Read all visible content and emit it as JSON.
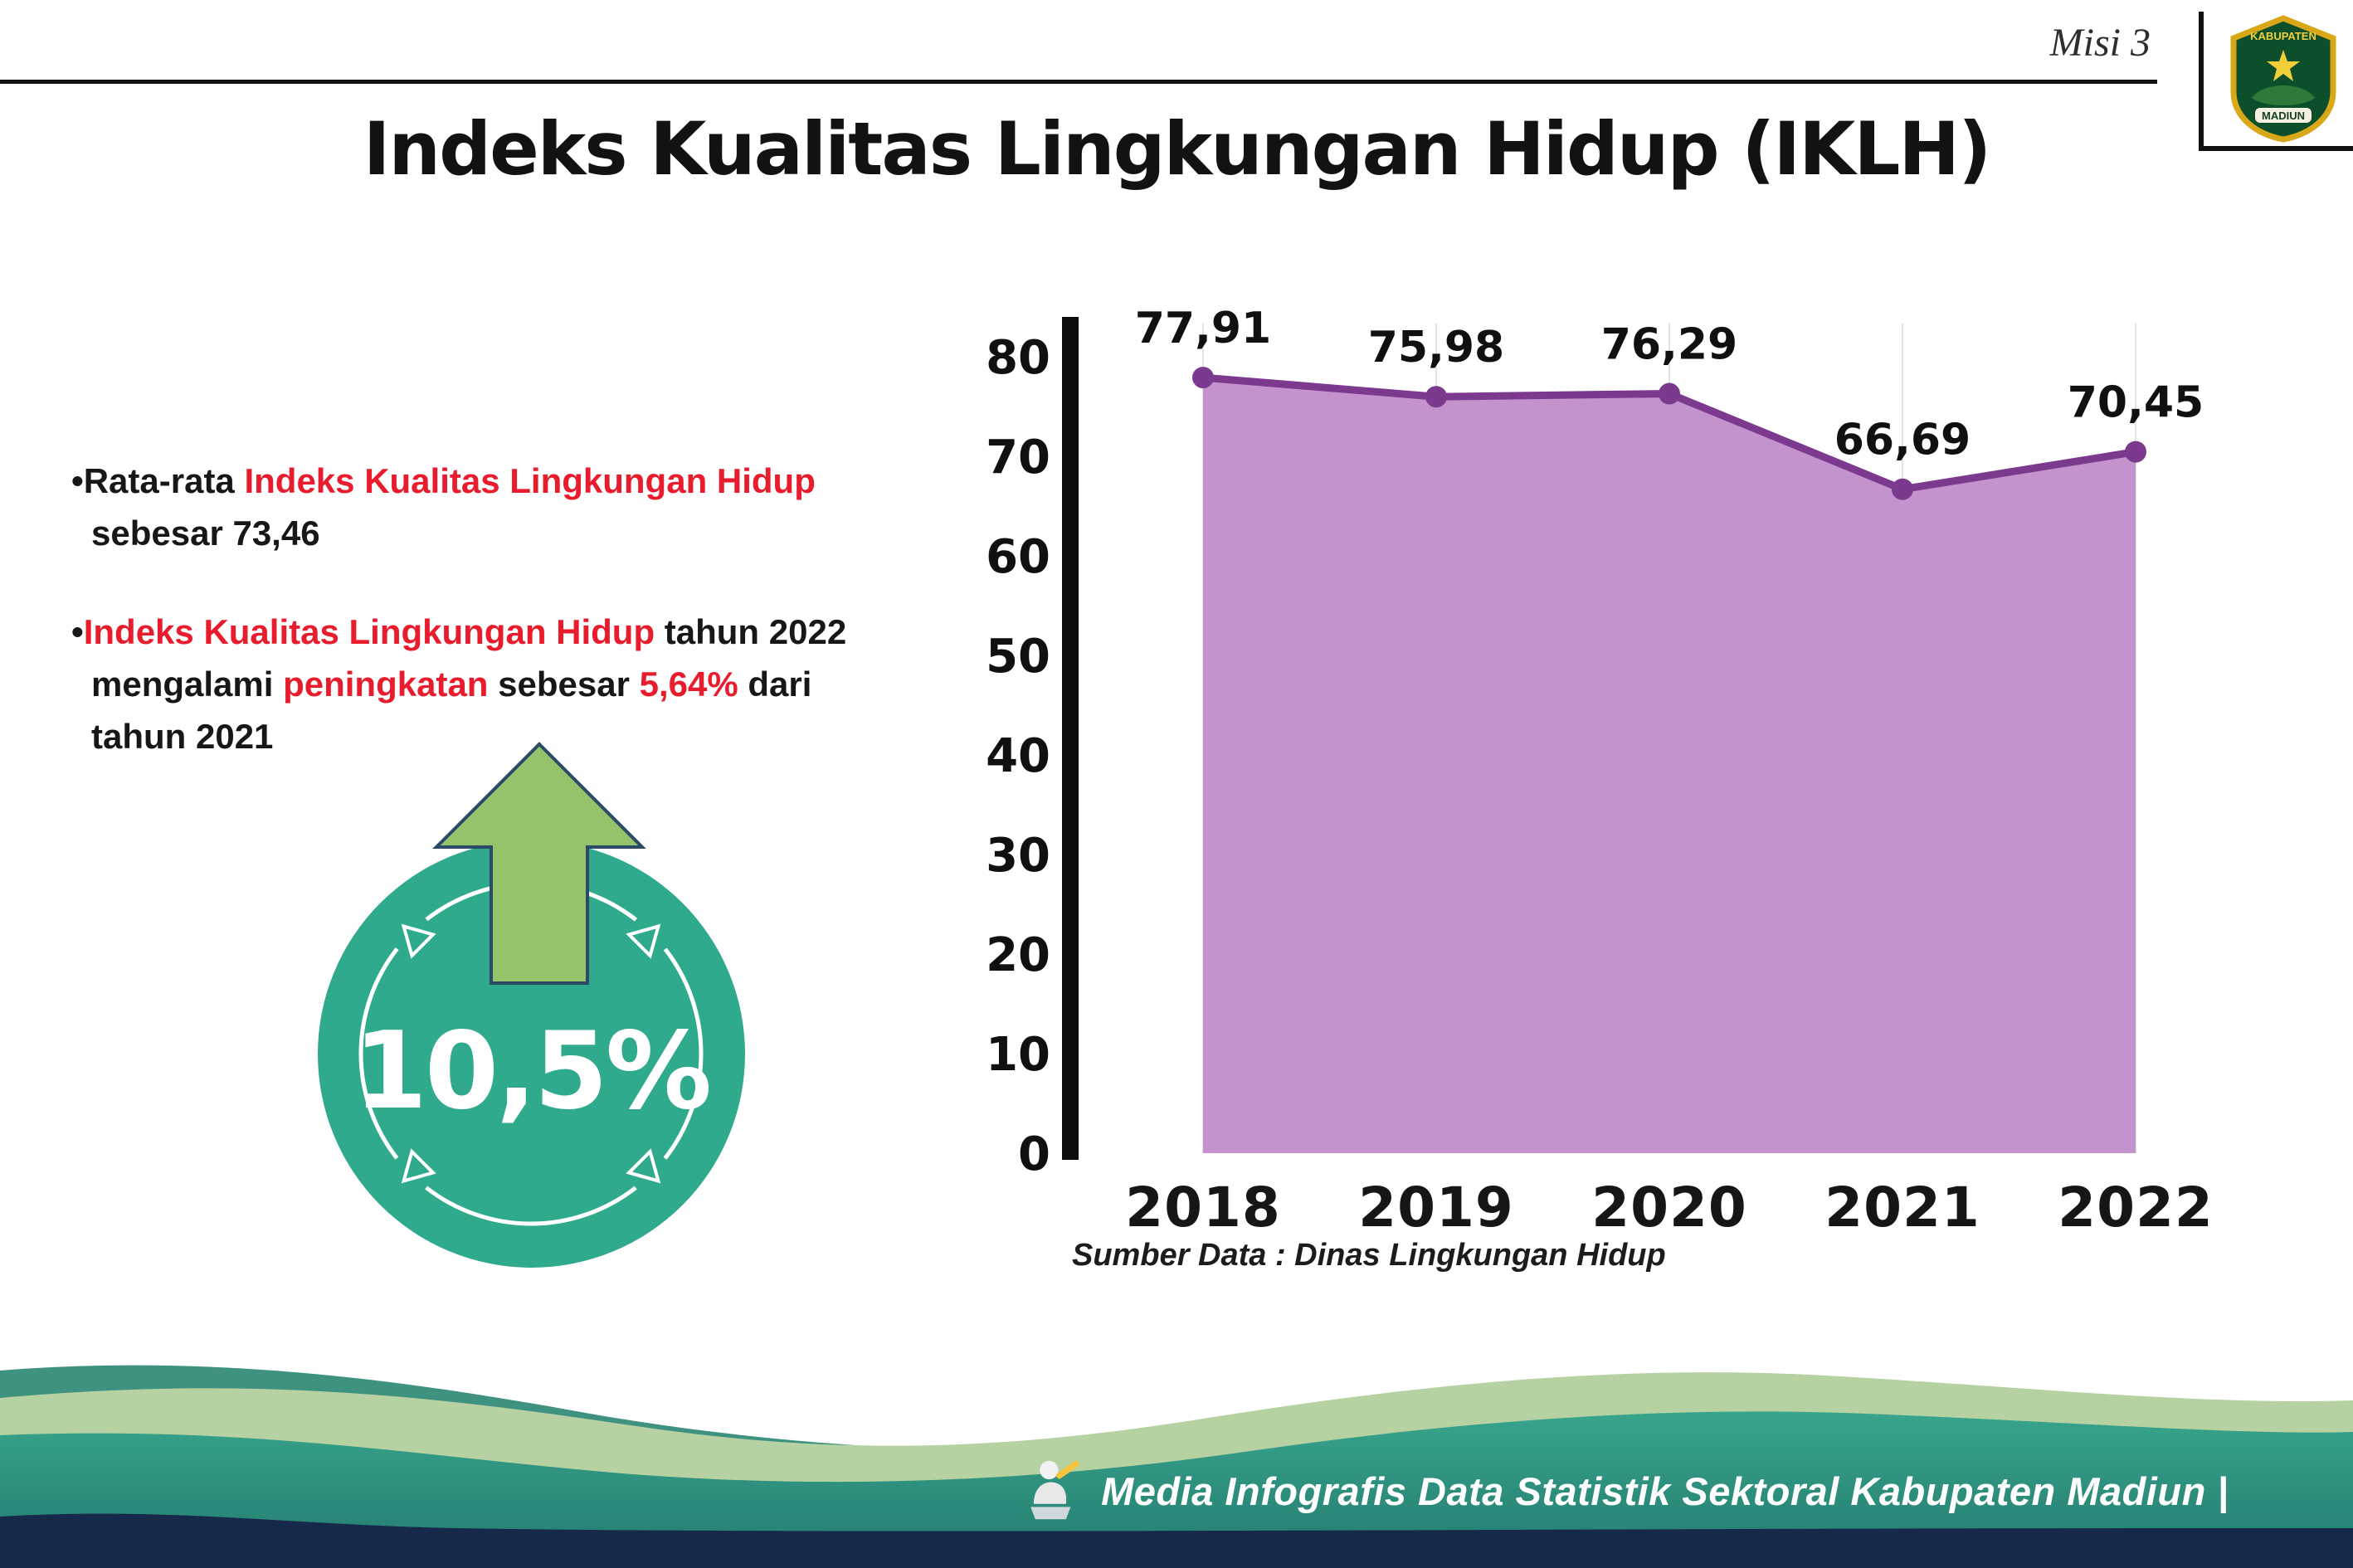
{
  "header": {
    "mission": "Misi 3",
    "title": "Indeks Kualitas Lingkungan Hidup (IKLH)"
  },
  "logo": {
    "top_text": "KABUPATEN",
    "bottom_text": "MADIUN"
  },
  "bullets": {
    "item1": {
      "bullet": "•",
      "line1_black": "Rata-rata ",
      "line1_red": "Indeks Kualitas Lingkungan Hidup",
      "line2": "sebesar 73,46"
    },
    "item2": {
      "bullet": "•",
      "line1_red": "Indeks Kualitas Lingkungan Hidup",
      "line1_black": " tahun 2022",
      "line2_a": "mengalami ",
      "line2_red": "peningkatan",
      "line2_b": " sebesar ",
      "line2_red2": "5,64%",
      "line2_c": " dari",
      "line3": "tahun 2021"
    }
  },
  "badge": {
    "value": "10,5%"
  },
  "chart_data": {
    "type": "area",
    "title": "Indeks Kualitas Lingkungan Hidup (IKLH)",
    "categories": [
      "2018",
      "2019",
      "2020",
      "2021",
      "2022"
    ],
    "values": [
      77.91,
      75.98,
      76.29,
      66.69,
      70.45
    ],
    "value_labels": [
      "77,91",
      "75,98",
      "76,29",
      "66,69",
      "70,45"
    ],
    "xlabel": "",
    "ylabel": "",
    "ylim": [
      0,
      80
    ],
    "yticks": [
      0,
      10,
      20,
      30,
      40,
      50,
      60,
      70,
      80
    ],
    "grid": "vertical-faint",
    "legend": "none",
    "colors": {
      "area": "#c493ce",
      "line": "#7b3a8e",
      "dot": "#7b3a8e",
      "axis": "#0d0d0d"
    },
    "source": "Sumber Data : Dinas Lingkungan Hidup"
  },
  "footer": {
    "text": "Media Infografis Data Statistik Sektoral Kabupaten Madiun |"
  }
}
